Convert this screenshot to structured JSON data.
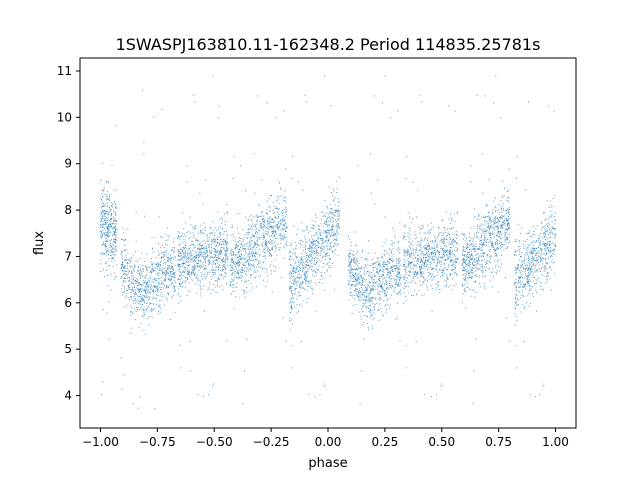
{
  "chart_data": {
    "type": "scatter",
    "title": "1SWASPJ163810.11-162348.2 Period 114835.25781s",
    "xlabel": "phase",
    "ylabel": "flux",
    "xlim": [
      -1.09,
      1.09
    ],
    "ylim": [
      3.3,
      11.28
    ],
    "xticks": [
      -1.0,
      -0.75,
      -0.5,
      -0.25,
      0.0,
      0.25,
      0.5,
      0.75,
      1.0
    ],
    "xtick_labels": [
      "−1.00",
      "−0.75",
      "−0.50",
      "−0.25",
      "0.00",
      "0.25",
      "0.50",
      "0.75",
      "1.00"
    ],
    "yticks": [
      4,
      5,
      6,
      7,
      8,
      9,
      10,
      11
    ],
    "ytick_labels": [
      "4",
      "5",
      "6",
      "7",
      "8",
      "9",
      "10",
      "11"
    ],
    "grid": false,
    "marker_color": "#1f77b4",
    "point_clusters": [
      {
        "phase": [
          -1.0,
          -0.93
        ],
        "flux_start": 7.6,
        "flux_end": 7.5,
        "spread": 0.75,
        "count": 350
      },
      {
        "phase": [
          -0.91,
          -0.67
        ],
        "flux_start": 6.8,
        "flux_end": 6.7,
        "flux_min": 6.2,
        "spread": 0.6,
        "count": 700
      },
      {
        "phase": [
          -0.66,
          -0.44
        ],
        "flux_start": 6.9,
        "flux_end": 7.1,
        "spread": 0.6,
        "count": 700
      },
      {
        "phase": [
          -0.43,
          -0.18
        ],
        "flux_start": 6.8,
        "flux_end": 7.8,
        "spread": 0.65,
        "count": 750
      },
      {
        "phase": [
          -0.17,
          0.05
        ],
        "flux_start": 6.4,
        "flux_end": 7.8,
        "spread": 0.65,
        "count": 700
      },
      {
        "phase": [
          0.09,
          0.32
        ],
        "flux_start": 6.8,
        "flux_end": 6.7,
        "flux_min": 6.2,
        "spread": 0.6,
        "count": 700
      },
      {
        "phase": [
          0.33,
          0.57
        ],
        "flux_start": 6.9,
        "flux_end": 7.1,
        "spread": 0.6,
        "count": 700
      },
      {
        "phase": [
          0.59,
          0.8
        ],
        "flux_start": 6.8,
        "flux_end": 7.8,
        "spread": 0.65,
        "count": 700
      },
      {
        "phase": [
          0.82,
          1.0
        ],
        "flux_start": 6.5,
        "flux_end": 7.4,
        "spread": 0.65,
        "count": 550
      }
    ],
    "outlier_flux_range": [
      3.7,
      10.95
    ]
  }
}
